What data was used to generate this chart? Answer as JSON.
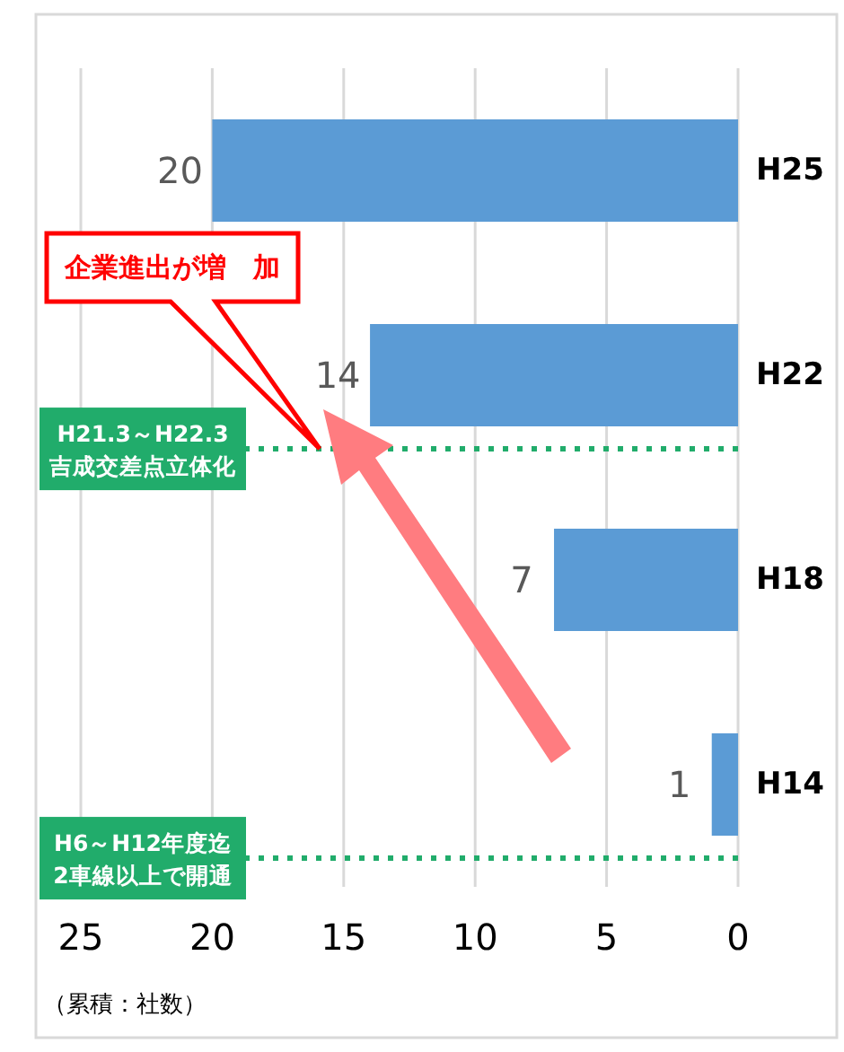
{
  "chart_data": {
    "type": "bar",
    "orientation": "horizontal",
    "xlabel": "（累積：社数）",
    "categories": [
      "H25",
      "H22",
      "H18",
      "H14"
    ],
    "values": [
      20,
      14,
      7,
      1
    ],
    "color": "#5b9bd5",
    "xlim": [
      25,
      0
    ],
    "xticks": [
      25,
      20,
      15,
      10,
      5,
      0
    ],
    "grid": "x",
    "data_labels": true,
    "annotations": [
      "H21.3～H22.3\n吉成交差点立体化",
      "H6～H12年度迄\n2車線以上で開通",
      "企業進出が増　加"
    ]
  }
}
